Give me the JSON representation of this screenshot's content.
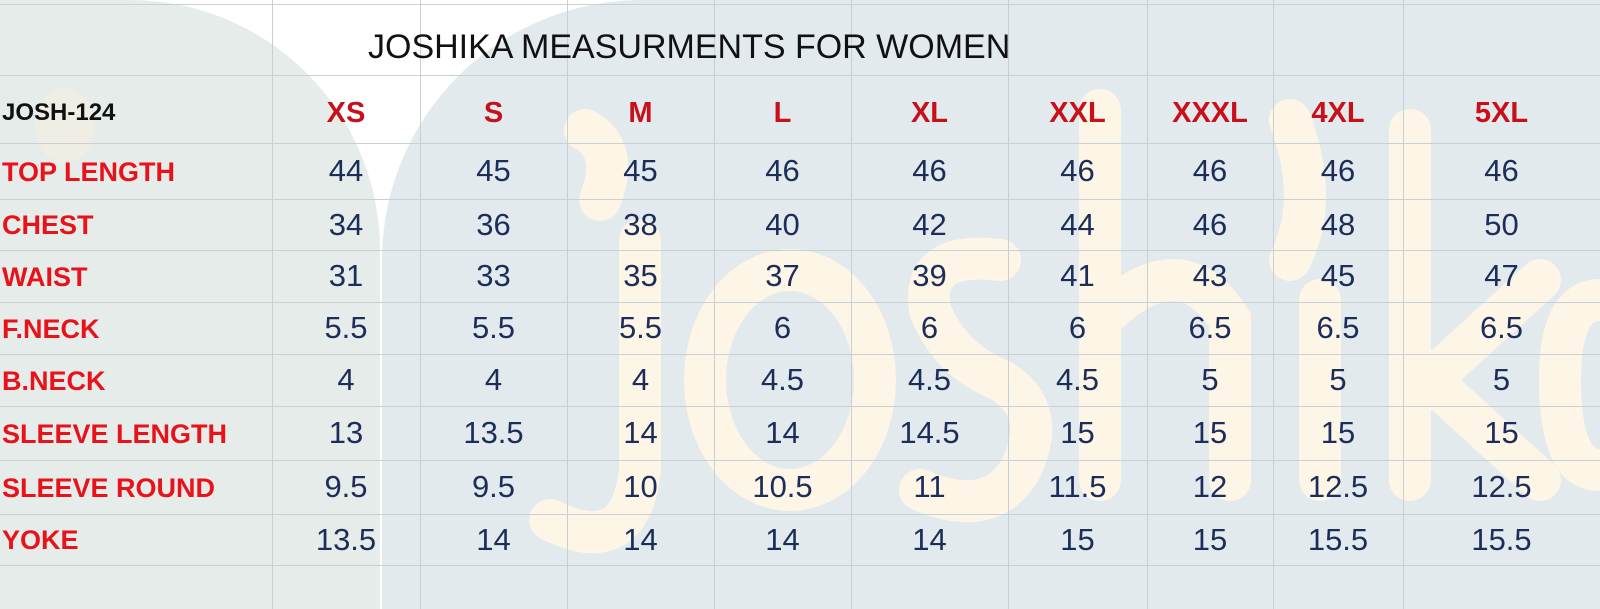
{
  "title": "JOSHIKA MEASURMENTS FOR WOMEN",
  "watermark_logo": "Joshika",
  "product_code": "JOSH-124",
  "sizes": [
    "XS",
    "S",
    "M",
    "L",
    "XL",
    "XXL",
    "XXXL",
    "4XL",
    "5XL"
  ],
  "rows": [
    {
      "label": "TOP LENGTH",
      "values": [
        "44",
        "45",
        "45",
        "46",
        "46",
        "46",
        "46",
        "46",
        "46"
      ]
    },
    {
      "label": "CHEST",
      "values": [
        "34",
        "36",
        "38",
        "40",
        "42",
        "44",
        "46",
        "48",
        "50"
      ]
    },
    {
      "label": "WAIST",
      "values": [
        "31",
        "33",
        "35",
        "37",
        "39",
        "41",
        "43",
        "45",
        "47"
      ]
    },
    {
      "label": "F.NECK",
      "values": [
        "5.5",
        "5.5",
        "5.5",
        "6",
        "6",
        "6",
        "6.5",
        "6.5",
        "6.5"
      ]
    },
    {
      "label": "B.NECK",
      "values": [
        "4",
        "4",
        "4",
        "4.5",
        "4.5",
        "4.5",
        "5",
        "5",
        "5"
      ]
    },
    {
      "label": "SLEEVE LENGTH",
      "values": [
        "13",
        "13.5",
        "14",
        "14",
        "14.5",
        "15",
        "15",
        "15",
        "15"
      ]
    },
    {
      "label": "SLEEVE ROUND",
      "values": [
        "9.5",
        "9.5",
        "10",
        "10.5",
        "11",
        "11.5",
        "12",
        "12.5",
        "12.5"
      ]
    },
    {
      "label": "YOKE",
      "values": [
        "13.5",
        "14",
        "14",
        "14",
        "14",
        "15",
        "15",
        "15.5",
        "15.5"
      ]
    }
  ],
  "colors": {
    "label_red": "#e8121b",
    "size_red": "#c8101a",
    "value_navy": "#1c2d5a",
    "background_blue": "#e3eaee",
    "watermark_cream": "#fdf5e6"
  }
}
